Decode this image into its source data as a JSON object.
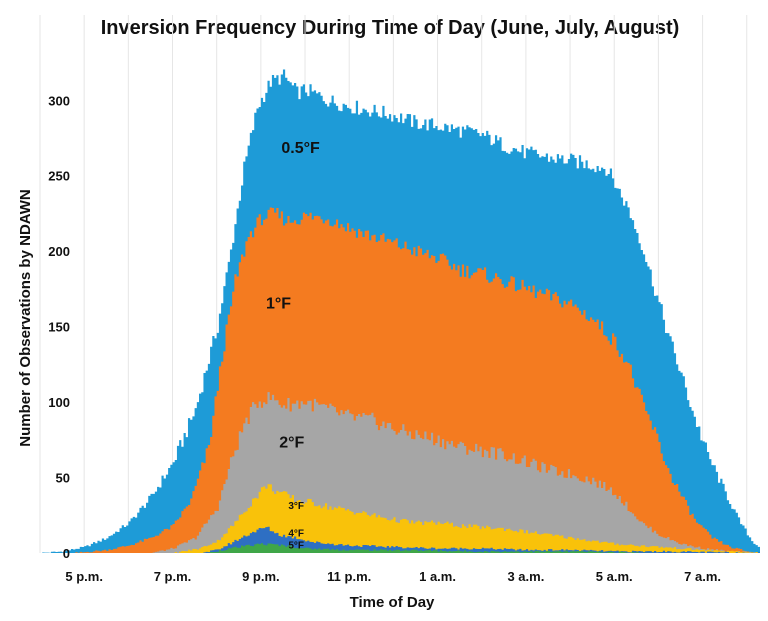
{
  "chart_data": {
    "type": "area",
    "title": "Inversion Frequency During Time of Day (June, July, August)",
    "xlabel": "Time of Day",
    "ylabel": "Number of Observations by NDAWN",
    "x_ticks": [
      {
        "label": "5 p.m.",
        "hour": 17
      },
      {
        "label": "7 p.m.",
        "hour": 19
      },
      {
        "label": "9 p.m.",
        "hour": 21
      },
      {
        "label": "11 p.m.",
        "hour": 23
      },
      {
        "label": "1 a.m.",
        "hour": 25
      },
      {
        "label": "3 a.m.",
        "hour": 27
      },
      {
        "label": "5 a.m.",
        "hour": 29
      },
      {
        "label": "7 a.m.",
        "hour": 31
      }
    ],
    "xlim": [
      16.0,
      32.3
    ],
    "ylim": [
      0,
      330
    ],
    "y_ticks": [
      0,
      50,
      100,
      150,
      200,
      250,
      300
    ],
    "grid": "vertical",
    "series": [
      {
        "name": "0.5°F",
        "color": "#1e9bd7",
        "label_at": [
          21.9,
          265
        ],
        "points": [
          [
            16.0,
            0
          ],
          [
            16.5,
            1
          ],
          [
            17.0,
            4
          ],
          [
            17.5,
            10
          ],
          [
            18.0,
            20
          ],
          [
            18.5,
            37
          ],
          [
            19.0,
            60
          ],
          [
            19.5,
            95
          ],
          [
            20.0,
            150
          ],
          [
            20.3,
            200
          ],
          [
            20.6,
            255
          ],
          [
            20.9,
            295
          ],
          [
            21.2,
            312
          ],
          [
            21.5,
            316
          ],
          [
            21.8,
            305
          ],
          [
            22.0,
            307
          ],
          [
            22.5,
            300
          ],
          [
            23.0,
            296
          ],
          [
            23.5,
            293
          ],
          [
            24.0,
            290
          ],
          [
            24.5,
            285
          ],
          [
            25.0,
            283
          ],
          [
            25.5,
            280
          ],
          [
            26.0,
            277
          ],
          [
            26.5,
            270
          ],
          [
            27.0,
            265
          ],
          [
            27.5,
            262
          ],
          [
            28.0,
            260
          ],
          [
            28.5,
            257
          ],
          [
            28.8,
            255
          ],
          [
            29.0,
            245
          ],
          [
            29.3,
            228
          ],
          [
            29.6,
            205
          ],
          [
            29.9,
            175
          ],
          [
            30.2,
            145
          ],
          [
            30.5,
            118
          ],
          [
            30.8,
            90
          ],
          [
            31.1,
            65
          ],
          [
            31.5,
            40
          ],
          [
            31.8,
            22
          ],
          [
            32.1,
            8
          ],
          [
            32.3,
            3
          ]
        ]
      },
      {
        "name": "1°F",
        "color": "#f47b20",
        "label_at": [
          21.4,
          162
        ],
        "points": [
          [
            16.0,
            0
          ],
          [
            16.8,
            0
          ],
          [
            17.5,
            2
          ],
          [
            18.0,
            5
          ],
          [
            18.5,
            10
          ],
          [
            19.0,
            18
          ],
          [
            19.4,
            35
          ],
          [
            19.8,
            70
          ],
          [
            20.1,
            130
          ],
          [
            20.4,
            180
          ],
          [
            20.7,
            210
          ],
          [
            21.0,
            222
          ],
          [
            21.3,
            225
          ],
          [
            21.6,
            220
          ],
          [
            22.0,
            223
          ],
          [
            22.5,
            222
          ],
          [
            23.0,
            215
          ],
          [
            23.5,
            210
          ],
          [
            24.0,
            205
          ],
          [
            24.5,
            200
          ],
          [
            25.0,
            195
          ],
          [
            25.5,
            188
          ],
          [
            26.0,
            185
          ],
          [
            26.5,
            180
          ],
          [
            27.0,
            175
          ],
          [
            27.5,
            170
          ],
          [
            28.0,
            165
          ],
          [
            28.5,
            155
          ],
          [
            29.0,
            140
          ],
          [
            29.3,
            125
          ],
          [
            29.6,
            100
          ],
          [
            29.9,
            80
          ],
          [
            30.2,
            55
          ],
          [
            30.5,
            38
          ],
          [
            30.8,
            22
          ],
          [
            31.2,
            10
          ],
          [
            31.6,
            4
          ],
          [
            32.0,
            1
          ],
          [
            32.3,
            0
          ]
        ]
      },
      {
        "name": "2°F",
        "color": "#a6a6a6",
        "label_at": [
          21.7,
          70
        ],
        "points": [
          [
            16.0,
            0
          ],
          [
            18.5,
            0
          ],
          [
            19.0,
            3
          ],
          [
            19.5,
            10
          ],
          [
            20.0,
            30
          ],
          [
            20.3,
            60
          ],
          [
            20.6,
            85
          ],
          [
            20.9,
            100
          ],
          [
            21.2,
            103
          ],
          [
            21.5,
            98
          ],
          [
            22.0,
            100
          ],
          [
            22.5,
            95
          ],
          [
            23.0,
            90
          ],
          [
            23.5,
            88
          ],
          [
            24.0,
            82
          ],
          [
            24.5,
            78
          ],
          [
            25.0,
            75
          ],
          [
            25.5,
            70
          ],
          [
            26.0,
            68
          ],
          [
            26.5,
            65
          ],
          [
            27.0,
            60
          ],
          [
            27.5,
            55
          ],
          [
            28.0,
            52
          ],
          [
            28.5,
            48
          ],
          [
            29.0,
            40
          ],
          [
            29.3,
            30
          ],
          [
            29.6,
            20
          ],
          [
            30.0,
            12
          ],
          [
            30.5,
            6
          ],
          [
            31.0,
            3
          ],
          [
            31.6,
            1
          ],
          [
            32.3,
            0
          ]
        ]
      },
      {
        "name": "3°F",
        "color": "#f9c20a",
        "label_at": [
          21.8,
          29
        ],
        "points": [
          [
            16.0,
            0
          ],
          [
            19.0,
            0
          ],
          [
            19.6,
            3
          ],
          [
            20.0,
            8
          ],
          [
            20.4,
            20
          ],
          [
            20.8,
            35
          ],
          [
            21.1,
            45
          ],
          [
            21.4,
            40
          ],
          [
            21.8,
            35
          ],
          [
            22.2,
            33
          ],
          [
            22.6,
            30
          ],
          [
            23.0,
            28
          ],
          [
            23.5,
            25
          ],
          [
            24.0,
            22
          ],
          [
            24.5,
            20
          ],
          [
            25.0,
            20
          ],
          [
            25.5,
            18
          ],
          [
            26.0,
            17
          ],
          [
            26.5,
            16
          ],
          [
            27.0,
            14
          ],
          [
            27.5,
            12
          ],
          [
            28.0,
            10
          ],
          [
            28.5,
            8
          ],
          [
            29.0,
            6
          ],
          [
            29.5,
            5
          ],
          [
            30.0,
            4
          ],
          [
            30.5,
            3
          ],
          [
            31.0,
            2
          ],
          [
            32.3,
            0
          ]
        ]
      },
      {
        "name": "4°F",
        "color": "#2e6fc3",
        "label_at": [
          21.8,
          11
        ],
        "points": [
          [
            16.0,
            0
          ],
          [
            19.6,
            0
          ],
          [
            20.0,
            2
          ],
          [
            20.4,
            8
          ],
          [
            20.8,
            14
          ],
          [
            21.1,
            17
          ],
          [
            21.4,
            12
          ],
          [
            21.8,
            10
          ],
          [
            22.2,
            7
          ],
          [
            22.6,
            6
          ],
          [
            23.0,
            5
          ],
          [
            24.0,
            4
          ],
          [
            25.0,
            3
          ],
          [
            26.0,
            3
          ],
          [
            27.0,
            2
          ],
          [
            28.0,
            2
          ],
          [
            29.0,
            1
          ],
          [
            30.0,
            1
          ],
          [
            32.3,
            0
          ]
        ]
      },
      {
        "name": "5°F",
        "color": "#3fa648",
        "label_at": [
          21.8,
          3
        ],
        "points": [
          [
            16.0,
            0
          ],
          [
            19.8,
            0
          ],
          [
            20.1,
            2
          ],
          [
            20.5,
            4
          ],
          [
            21.0,
            6
          ],
          [
            21.5,
            5
          ],
          [
            22.0,
            3
          ],
          [
            23.0,
            2
          ],
          [
            24.0,
            2
          ],
          [
            26.0,
            1
          ],
          [
            28.0,
            1
          ],
          [
            30.0,
            0
          ],
          [
            32.3,
            0
          ]
        ]
      }
    ]
  }
}
